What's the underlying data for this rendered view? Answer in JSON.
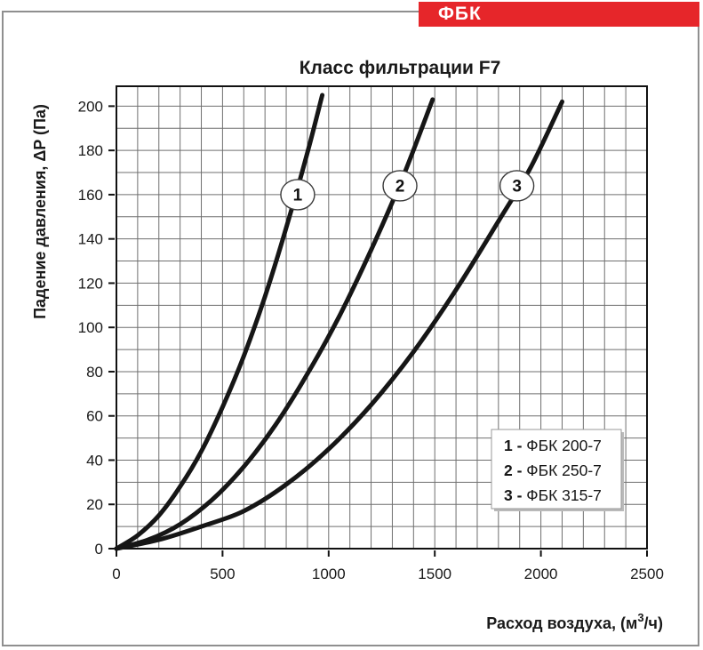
{
  "header": {
    "brand": "ФБК",
    "banner_color": "#e6262a"
  },
  "chart_data": {
    "type": "line",
    "title": "Класс фильтрации F7",
    "xlabel": "Расход воздуха, (м³/ч)",
    "xlabel_parts": {
      "base": "Расход воздуха, (м",
      "sup": "3",
      "rest": "/ч)"
    },
    "ylabel": "Падение давления, ΔP (Па)",
    "xlim": [
      0,
      2500
    ],
    "ylim": [
      0,
      209
    ],
    "x_major_ticks": [
      0,
      500,
      1000,
      1500,
      2000,
      2500
    ],
    "y_major_ticks": [
      0,
      20,
      40,
      60,
      80,
      100,
      120,
      140,
      160,
      180,
      200
    ],
    "x_minor_step": 100,
    "y_minor_step": 10,
    "grid": true,
    "series": [
      {
        "label": "1",
        "name": "ФБК 200-7",
        "points": [
          [
            0,
            0
          ],
          [
            100,
            6
          ],
          [
            200,
            15
          ],
          [
            300,
            28
          ],
          [
            400,
            44
          ],
          [
            500,
            64
          ],
          [
            600,
            87
          ],
          [
            700,
            114
          ],
          [
            800,
            145
          ],
          [
            900,
            179
          ],
          [
            970,
            205
          ]
        ],
        "marker_at": [
          854,
          160
        ]
      },
      {
        "label": "2",
        "name": "ФБК 250-7",
        "points": [
          [
            0,
            0
          ],
          [
            150,
            4
          ],
          [
            300,
            11
          ],
          [
            450,
            22
          ],
          [
            600,
            37
          ],
          [
            750,
            56
          ],
          [
            900,
            79
          ],
          [
            1050,
            105
          ],
          [
            1200,
            135
          ],
          [
            1350,
            168
          ],
          [
            1490,
            203
          ]
        ],
        "marker_at": [
          1336,
          164
        ]
      },
      {
        "label": "3",
        "name": "ФБК 315-7",
        "points": [
          [
            0,
            0
          ],
          [
            200,
            4
          ],
          [
            400,
            10
          ],
          [
            600,
            17
          ],
          [
            800,
            29
          ],
          [
            1000,
            45
          ],
          [
            1200,
            65
          ],
          [
            1400,
            89
          ],
          [
            1600,
            117
          ],
          [
            1800,
            148
          ],
          [
            1950,
            172
          ],
          [
            2100,
            202
          ]
        ],
        "marker_at": [
          1887,
          164
        ]
      }
    ],
    "legend": {
      "position": "lower right",
      "separator": " - ",
      "entries": [
        {
          "num": "1",
          "name": "ФБК 200-7"
        },
        {
          "num": "2",
          "name": "ФБК 250-7"
        },
        {
          "num": "3",
          "name": "ФБК 315-7"
        }
      ]
    },
    "colors": {
      "curve": "#161616",
      "grid": "#6f6f6f",
      "axis": "#111111",
      "marker_stroke": "#3a3a3a"
    }
  }
}
